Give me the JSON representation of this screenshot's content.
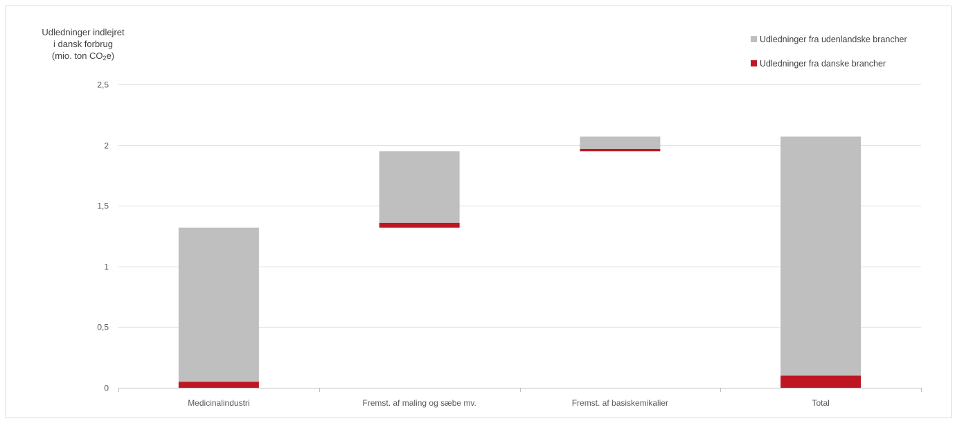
{
  "chart_data": {
    "type": "bar",
    "subtype": "waterfall-stacked",
    "ylabel_lines": [
      "Udledninger indlejret",
      "i dansk forbrug",
      "(mio. ton CO",
      "e)"
    ],
    "ylabel_sub": "2",
    "ylim": [
      0,
      2.5
    ],
    "yticks": [
      "0",
      "0,5",
      "1",
      "1,5",
      "2",
      "2,5"
    ],
    "ytick_values": [
      0,
      0.5,
      1,
      1.5,
      2,
      2.5
    ],
    "grid": true,
    "legend_position": "top-right",
    "categories": [
      "Medicinalindustri",
      "Fremst. af maling og sæbe mv.",
      "Fremst. af basiskemikalier",
      "Total"
    ],
    "series": [
      {
        "name": "Udledninger fra danske brancher",
        "color": "#be1622",
        "bottoms": [
          0,
          1.32,
          1.95,
          0
        ],
        "values": [
          0.05,
          0.04,
          0.02,
          0.1
        ]
      },
      {
        "name": "Udledninger fra udenlandske brancher",
        "color": "#bfbfbf",
        "bottoms": [
          0.05,
          1.36,
          1.97,
          0.1
        ],
        "values": [
          1.27,
          0.59,
          0.1,
          1.97
        ]
      }
    ],
    "legend_order": [
      1,
      0
    ]
  }
}
